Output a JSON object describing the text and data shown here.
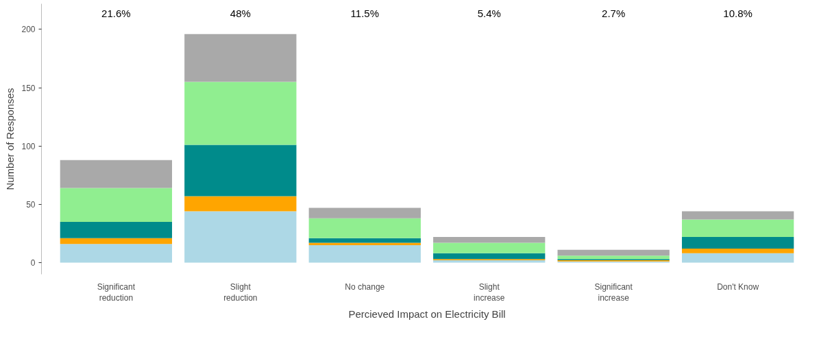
{
  "chart_data": {
    "type": "bar",
    "stacked": true,
    "xlabel": "Percieved Impact on Electricity Bill",
    "ylabel": "Number of Responses",
    "categories": [
      "Significant\nreduction",
      "Slight\nreduction",
      "No change",
      "Slight\nincrease",
      "Significant\nincrease",
      "Don't Know"
    ],
    "series": [
      {
        "color": "#add8e6",
        "values": [
          16,
          44,
          15,
          2,
          1,
          8
        ]
      },
      {
        "color": "#ffa500",
        "values": [
          5,
          13,
          2,
          1,
          1,
          4
        ]
      },
      {
        "color": "#008b8b",
        "values": [
          14,
          44,
          4,
          5,
          1,
          10
        ]
      },
      {
        "color": "#90ee90",
        "values": [
          29,
          54,
          17,
          9,
          3,
          15
        ]
      },
      {
        "color": "#a9a9a9",
        "values": [
          24,
          41,
          9,
          5,
          5,
          7
        ]
      }
    ],
    "ylim": [
      -10,
      222
    ],
    "yticks": [
      0,
      50,
      100,
      150,
      200
    ],
    "grid": false,
    "annotations": [
      "21.6%",
      "48%",
      "11.5%",
      "5.4%",
      "2.7%",
      "10.8%"
    ]
  }
}
